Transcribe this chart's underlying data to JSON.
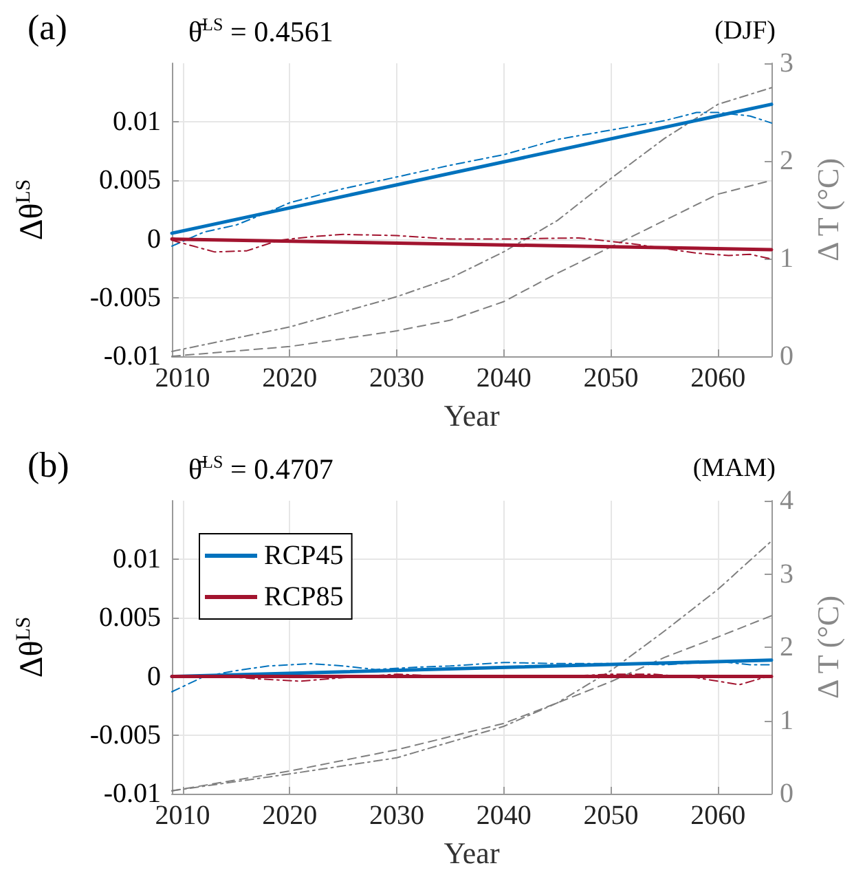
{
  "chart_data": [
    {
      "type": "line",
      "title": "(a)",
      "subtitle": "θ̄$^{LS}$ = 0.4561",
      "annotations": [
        "(DJF)"
      ],
      "xlabel": "Year",
      "ylabel": "Δθ$^{LS}$",
      "y2label": "Δ T (°C)",
      "xlim": [
        2009,
        2065
      ],
      "xticks": [
        2010,
        2020,
        2030,
        2040,
        2050,
        2060
      ],
      "ylim": [
        -0.01,
        0.015
      ],
      "yticks": [
        -0.01,
        -0.005,
        0,
        0.005,
        0.01
      ],
      "y2lim": [
        0,
        3
      ],
      "y2ticks": [
        0,
        1,
        2,
        3
      ],
      "grid": true,
      "legend": false,
      "marker": "none",
      "series": [
        {
          "color": "#0072bd",
          "line_style": "solid",
          "x": [
            2009,
            2065
          ],
          "values": [
            0.0005,
            0.0115
          ]
        },
        {
          "color": "#0072bd",
          "line_style": "dashdot",
          "x": [
            2009,
            2012,
            2015,
            2018,
            2020,
            2025,
            2030,
            2035,
            2040,
            2045,
            2050,
            2055,
            2058,
            2060,
            2063,
            2065
          ],
          "values": [
            -0.0006,
            0.0006,
            0.0012,
            0.0023,
            0.0031,
            0.0043,
            0.0053,
            0.0063,
            0.0072,
            0.0085,
            0.0093,
            0.0101,
            0.0108,
            0.0108,
            0.0105,
            0.0099
          ]
        },
        {
          "color": "#a2142f",
          "line_style": "solid",
          "x": [
            2009,
            2065
          ],
          "values": [
            0,
            -0.0009
          ]
        },
        {
          "color": "#a2142f",
          "line_style": "dashdot",
          "x": [
            2009,
            2011,
            2013,
            2016,
            2019,
            2022,
            2025,
            2030,
            2035,
            2040,
            2047,
            2052,
            2055,
            2058,
            2061,
            2063,
            2065
          ],
          "values": [
            -0.0001,
            -0.0006,
            -0.0011,
            -0.001,
            -0.0001,
            0.0002,
            0.0004,
            0.0003,
            0,
            0,
            0.0001,
            -0.0004,
            -0.0008,
            -0.0012,
            -0.0014,
            -0.0013,
            -0.0017
          ]
        },
        {
          "color": "#7f7f7f",
          "line_style": "dashdot",
          "axis": "y2",
          "x": [
            2009,
            2020,
            2030,
            2035,
            2040,
            2045,
            2050,
            2055,
            2060,
            2065
          ],
          "values": [
            0.05,
            0.3,
            0.61,
            0.8,
            1.07,
            1.39,
            1.82,
            2.23,
            2.58,
            2.75
          ]
        },
        {
          "color": "#7f7f7f",
          "line_style": "dashed",
          "axis": "y2",
          "x": [
            2009,
            2020,
            2030,
            2035,
            2040,
            2045,
            2050,
            2055,
            2060,
            2065
          ],
          "values": [
            0,
            0.1,
            0.26,
            0.37,
            0.56,
            0.85,
            1.12,
            1.39,
            1.66,
            1.8
          ]
        }
      ]
    },
    {
      "type": "line",
      "title": "(b)",
      "subtitle": "θ̄$^{LS}$ = 0.4707",
      "annotations": [
        "(MAM)"
      ],
      "xlabel": "Year",
      "ylabel": "Δθ$^{LS}$",
      "y2label": "Δ T (°C)",
      "xlim": [
        2009,
        2065
      ],
      "xticks": [
        2010,
        2020,
        2030,
        2040,
        2050,
        2060
      ],
      "ylim": [
        -0.01,
        0.015
      ],
      "yticks": [
        -0.01,
        -0.005,
        0,
        0.005,
        0.01
      ],
      "y2lim": [
        0,
        4
      ],
      "y2ticks": [
        0,
        1,
        2,
        3,
        4
      ],
      "grid": true,
      "legend": "top left",
      "marker": "none",
      "series": [
        {
          "name": "RCP45",
          "color": "#0072bd",
          "line_style": "solid",
          "x": [
            2009,
            2065
          ],
          "values": [
            0,
            0.0014
          ]
        },
        {
          "color": "#0072bd",
          "line_style": "dashdot",
          "x": [
            2009,
            2012,
            2015,
            2018,
            2022,
            2025,
            2028,
            2032,
            2035,
            2040,
            2045,
            2050,
            2055,
            2060,
            2063,
            2065
          ],
          "values": [
            -0.0013,
            0,
            0.0005,
            0.0009,
            0.0011,
            0.0009,
            0.0006,
            0.0008,
            0.0009,
            0.0012,
            0.0011,
            0.0011,
            0.001,
            0.0013,
            0.001,
            0.001
          ]
        },
        {
          "name": "RCP85",
          "color": "#a2142f",
          "line_style": "solid",
          "x": [
            2009,
            2065
          ],
          "values": [
            0,
            0
          ]
        },
        {
          "color": "#a2142f",
          "line_style": "dashdot",
          "x": [
            2009,
            2014,
            2017,
            2021,
            2025,
            2030,
            2035,
            2040,
            2045,
            2050,
            2054,
            2058,
            2062,
            2065
          ],
          "values": [
            0,
            0,
            -0.0002,
            -0.0004,
            -0.0001,
            0.0002,
            0,
            0,
            0,
            0.0002,
            0.0002,
            -0.0001,
            -0.0007,
            0.0001
          ]
        },
        {
          "color": "#7f7f7f",
          "line_style": "dashdot",
          "axis": "y2",
          "x": [
            2009,
            2020,
            2030,
            2040,
            2045,
            2050,
            2055,
            2060,
            2065
          ],
          "values": [
            0.04,
            0.27,
            0.49,
            0.92,
            1.24,
            1.68,
            2.22,
            2.79,
            3.45
          ]
        },
        {
          "color": "#7f7f7f",
          "line_style": "dashed",
          "axis": "y2",
          "x": [
            2009,
            2020,
            2030,
            2040,
            2045,
            2050,
            2055,
            2060,
            2065
          ],
          "values": [
            0.04,
            0.31,
            0.6,
            0.96,
            1.24,
            1.53,
            1.86,
            2.14,
            2.43
          ]
        }
      ]
    }
  ]
}
